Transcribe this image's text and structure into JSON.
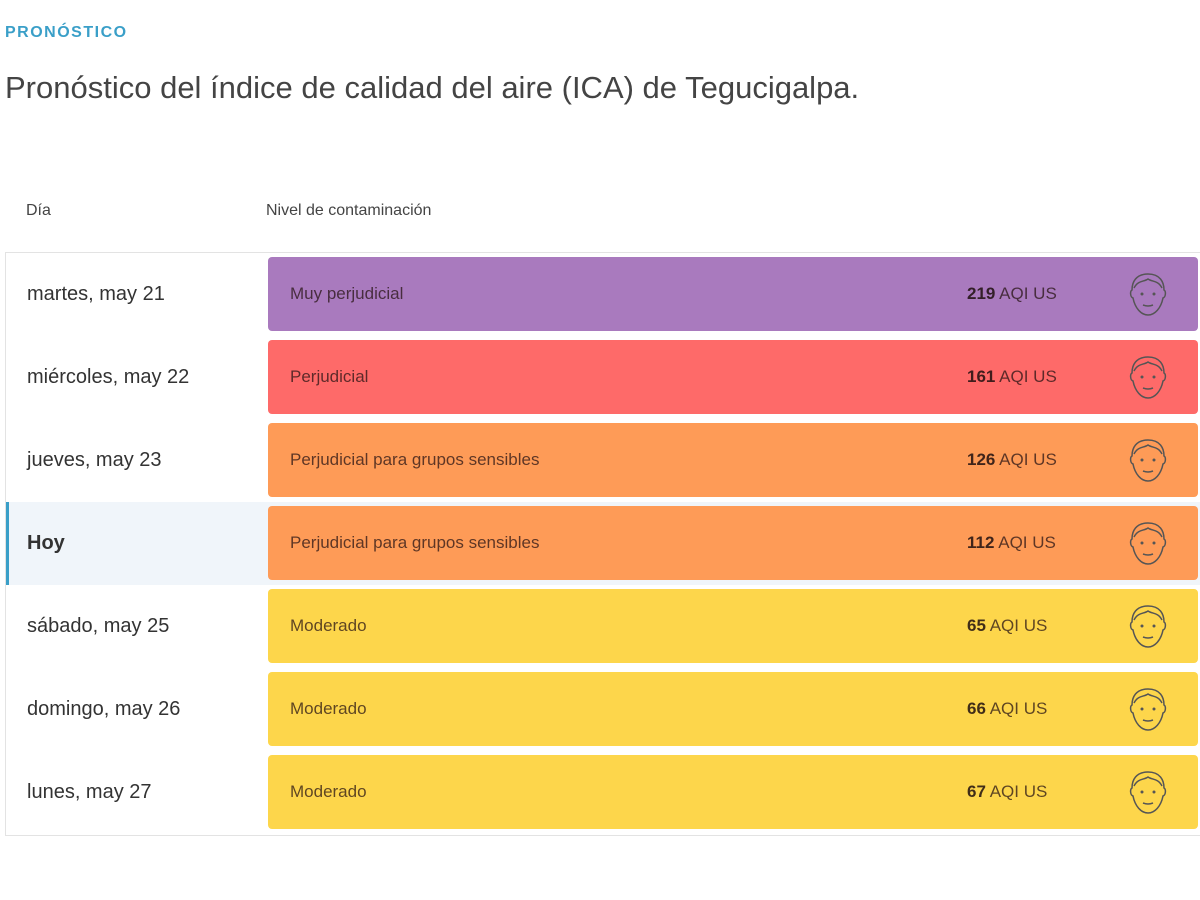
{
  "header": {
    "eyebrow": "PRONÓSTICO",
    "title": "Pronóstico del índice de calidad del aire (ICA) de Tegucigalpa."
  },
  "table": {
    "columns": [
      "Día",
      "Nivel de contaminación"
    ],
    "rows": [
      {
        "day": "martes, may 21",
        "level": "Muy perjudicial",
        "aqi": 219,
        "unit": "AQI US",
        "color": "#a97abe"
      },
      {
        "day": "miércoles, may 22",
        "level": "Perjudicial",
        "aqi": 161,
        "unit": "AQI US",
        "color": "#fe6a69"
      },
      {
        "day": "jueves, may 23",
        "level": "Perjudicial para grupos sensibles",
        "aqi": 126,
        "unit": "AQI US",
        "color": "#fe9b57"
      },
      {
        "day": "Hoy",
        "level": "Perjudicial para grupos sensibles",
        "aqi": 112,
        "unit": "AQI US",
        "color": "#fe9b57",
        "current": true
      },
      {
        "day": "sábado, may 25",
        "level": "Moderado",
        "aqi": 65,
        "unit": "AQI US",
        "color": "#fdd64b"
      },
      {
        "day": "domingo, may 26",
        "level": "Moderado",
        "aqi": 66,
        "unit": "AQI US",
        "color": "#fdd64b"
      },
      {
        "day": "lunes, may 27",
        "level": "Moderado",
        "aqi": 67,
        "unit": "AQI US",
        "color": "#fdd64b"
      }
    ]
  }
}
